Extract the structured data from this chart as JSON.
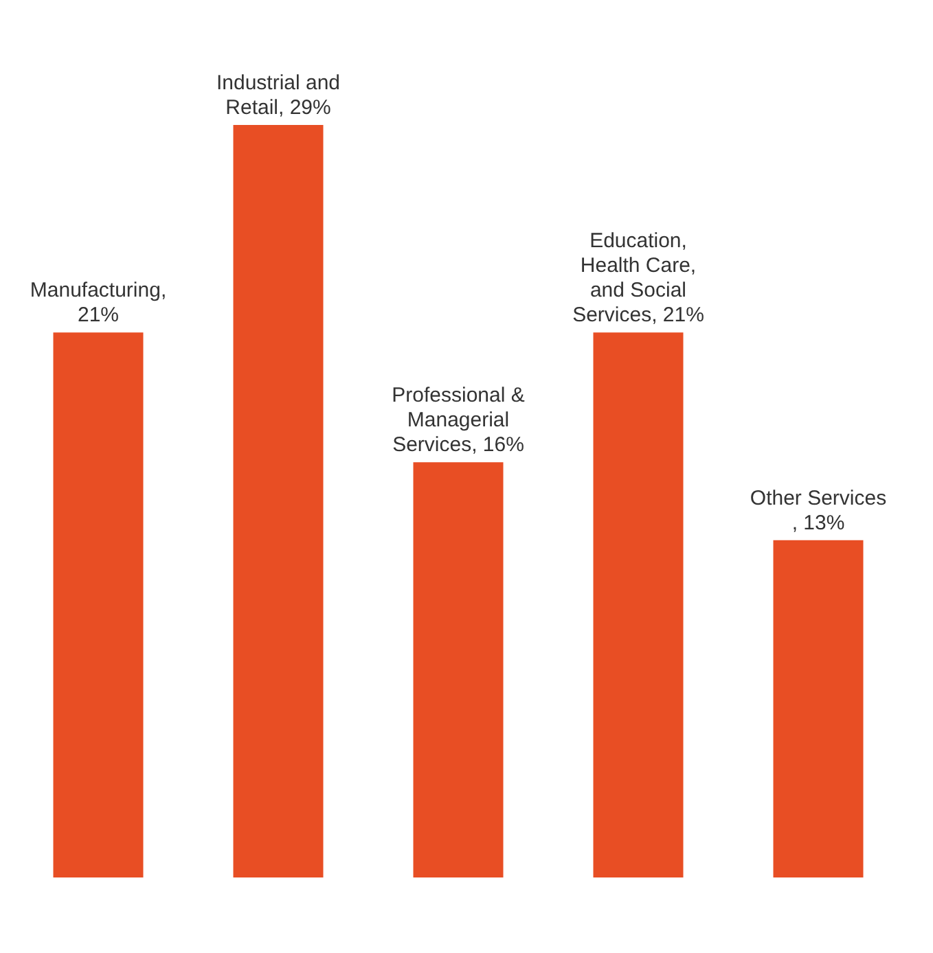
{
  "chart_data": {
    "type": "bar",
    "categories": [
      null,
      null,
      null,
      null,
      null
    ],
    "values": [
      21,
      29,
      16,
      21,
      13
    ],
    "value_labels": [
      "Manufacturing, 21%",
      "Industrial and Retail, 29%",
      "Professional & Managerial Services, 16%",
      "Education, Health Care, and Social Services, 21%",
      "Other Services , 13%"
    ],
    "color": "#e84e24"
  }
}
